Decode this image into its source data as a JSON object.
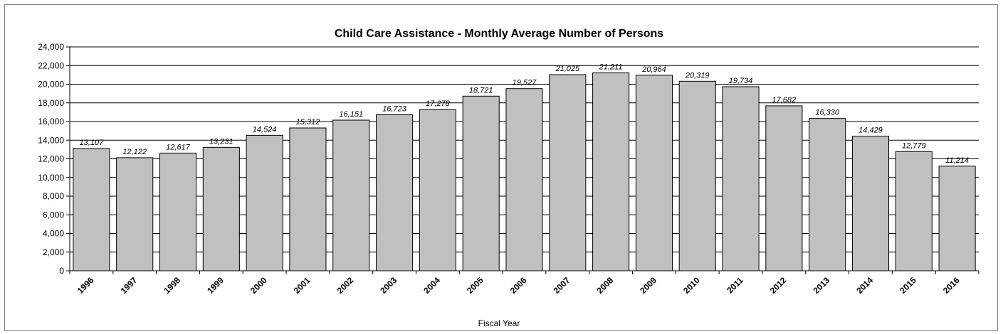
{
  "chart_data": {
    "type": "bar",
    "title": "Child Care Assistance - Monthly Average Number of Persons",
    "xlabel": "Fiscal Year",
    "ylabel": "",
    "ylim": [
      0,
      24000
    ],
    "ytick_step": 2000,
    "grid": true,
    "legend": "none",
    "bar_color": "#c0c0c0",
    "categories": [
      "1996",
      "1997",
      "1998",
      "1999",
      "2000",
      "2001",
      "2002",
      "2003",
      "2004",
      "2005",
      "2006",
      "2007",
      "2008",
      "2009",
      "2010",
      "2011",
      "2012",
      "2013",
      "2014",
      "2015",
      "2016"
    ],
    "values": [
      13107,
      12122,
      12617,
      13231,
      14524,
      15312,
      16151,
      16723,
      17278,
      18721,
      19527,
      21025,
      21211,
      20964,
      20319,
      19734,
      17682,
      16330,
      14429,
      12779,
      11214
    ],
    "data_labels": [
      "13,107",
      "12,122",
      "12,617",
      "13,231",
      "14,524",
      "15,312",
      "16,151",
      "16,723",
      "17,278",
      "18,721",
      "19,527",
      "21,025",
      "21,211",
      "20,964",
      "20,319",
      "19,734",
      "17,682",
      "16,330",
      "14,429",
      "12,779",
      "11,214"
    ],
    "ytick_labels": [
      "0",
      "2,000",
      "4,000",
      "6,000",
      "8,000",
      "10,000",
      "12,000",
      "14,000",
      "16,000",
      "18,000",
      "20,000",
      "22,000",
      "24,000"
    ]
  }
}
